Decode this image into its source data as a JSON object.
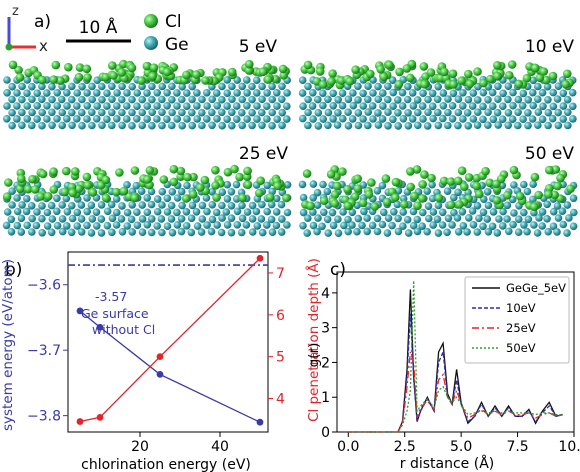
{
  "figure": {
    "panel_a": {
      "label": "a)",
      "axis_z": "z",
      "axis_x": "x",
      "scale_bar": "10 Å",
      "legend": [
        {
          "name": "Cl",
          "color": "#3cc43c"
        },
        {
          "name": "Ge",
          "color": "#3aa6ae"
        }
      ],
      "snapshots": [
        {
          "label": "5 eV"
        },
        {
          "label": "10 eV"
        },
        {
          "label": "25 eV"
        },
        {
          "label": "50 eV"
        }
      ]
    },
    "panel_b": {
      "label": "b)",
      "annotation_value": "-3.57",
      "annotation_line1": "Ge surface",
      "annotation_line2": "without Cl"
    },
    "panel_c": {
      "label": "c)"
    }
  },
  "chart_data": [
    {
      "id": "b",
      "type": "line",
      "xlabel": "chlorination energy (eV)",
      "ylabel": "system energy (eV/atom)",
      "y2label": "Cl penetration depth (Å)",
      "xlim": [
        2,
        52
      ],
      "ylim": [
        -3.825,
        -3.55
      ],
      "y2lim": [
        3.2,
        7.5
      ],
      "xticks": [
        20,
        40
      ],
      "yticks": [
        -3.6,
        -3.7,
        -3.8
      ],
      "ytick_labels": [
        "−3.6",
        "−3.7",
        "−3.8"
      ],
      "y2ticks": [
        4,
        5,
        6,
        7
      ],
      "reference_line": {
        "y": -3.57,
        "color": "#3a3aa8"
      },
      "series": [
        {
          "axis": "left",
          "color": "#3a3aa8",
          "x": [
            5,
            10,
            25,
            50
          ],
          "values": [
            -3.64,
            -3.665,
            -3.737,
            -3.81
          ]
        },
        {
          "axis": "right",
          "color": "#e3242b",
          "x": [
            5,
            10,
            25,
            50
          ],
          "values": [
            3.45,
            3.55,
            5.0,
            7.35
          ]
        }
      ]
    },
    {
      "id": "c",
      "type": "line",
      "xlabel": "r distance (Å)",
      "ylabel": "g(r)",
      "xlim": [
        -0.5,
        10.0
      ],
      "ylim": [
        0,
        4.6
      ],
      "xticks": [
        0.0,
        2.5,
        5.0,
        7.5,
        10.0
      ],
      "xtick_labels": [
        "0.0",
        "2.5",
        "5.0",
        "7.5",
        "10.0"
      ],
      "yticks": [
        0,
        1,
        2,
        3,
        4
      ],
      "legend_position": "top-right",
      "x": [
        0.0,
        2.2,
        2.4,
        2.6,
        2.75,
        2.9,
        3.05,
        3.2,
        3.5,
        3.8,
        4.0,
        4.2,
        4.4,
        4.6,
        4.8,
        5.0,
        5.3,
        5.6,
        5.9,
        6.2,
        6.5,
        6.8,
        7.1,
        7.4,
        7.7,
        8.0,
        8.3,
        8.6,
        8.9,
        9.2,
        9.5
      ],
      "series": [
        {
          "name": "GeGe_5eV",
          "color": "#111111",
          "dash": "",
          "values": [
            0.0,
            0.0,
            0.3,
            1.8,
            4.1,
            1.6,
            0.3,
            0.6,
            1.0,
            0.6,
            2.3,
            2.55,
            1.1,
            0.8,
            1.8,
            0.85,
            0.25,
            0.45,
            0.85,
            0.45,
            0.75,
            0.45,
            0.75,
            0.45,
            0.45,
            0.65,
            0.25,
            0.6,
            0.85,
            0.45,
            0.5
          ]
        },
        {
          "name": "10eV",
          "color": "#2f2fb0",
          "dash": "4,2",
          "values": [
            0.0,
            0.0,
            0.3,
            1.6,
            3.4,
            1.5,
            0.3,
            0.6,
            0.95,
            0.6,
            2.0,
            2.3,
            1.0,
            0.8,
            1.5,
            0.8,
            0.3,
            0.45,
            0.8,
            0.45,
            0.7,
            0.45,
            0.7,
            0.45,
            0.45,
            0.6,
            0.3,
            0.55,
            0.75,
            0.45,
            0.5
          ]
        },
        {
          "name": "25eV",
          "color": "#e3242b",
          "dash": "7,3,2,3",
          "values": [
            0.0,
            0.0,
            0.25,
            1.3,
            2.3,
            2.0,
            0.4,
            0.7,
            0.9,
            0.65,
            1.5,
            1.65,
            1.0,
            0.8,
            1.2,
            0.8,
            0.4,
            0.5,
            0.65,
            0.5,
            0.6,
            0.5,
            0.6,
            0.5,
            0.5,
            0.55,
            0.4,
            0.5,
            0.55,
            0.45,
            0.5
          ]
        },
        {
          "name": "50eV",
          "color": "#2ca02c",
          "dash": "2,2",
          "values": [
            0.0,
            0.0,
            0.2,
            0.6,
            1.2,
            4.35,
            0.6,
            0.75,
            0.95,
            0.7,
            1.2,
            1.3,
            1.0,
            0.85,
            1.0,
            0.8,
            0.5,
            0.55,
            0.6,
            0.55,
            0.6,
            0.55,
            0.6,
            0.55,
            0.55,
            0.55,
            0.5,
            0.55,
            0.55,
            0.5,
            0.5
          ]
        }
      ]
    }
  ]
}
